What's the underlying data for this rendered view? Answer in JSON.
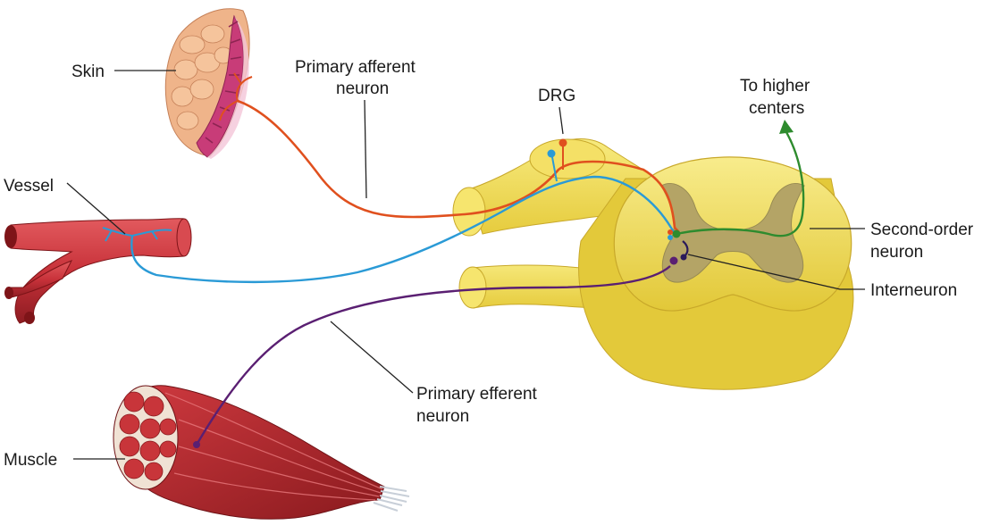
{
  "labels": {
    "skin": "Skin",
    "primary_afferent_line1": "Primary afferent",
    "primary_afferent_line2": "neuron",
    "drg": "DRG",
    "to_higher_line1": "To higher",
    "to_higher_line2": "centers",
    "vessel": "Vessel",
    "second_order_line1": "Second-order",
    "second_order_line2": "neuron",
    "interneuron": "Interneuron",
    "primary_efferent_line1": "Primary efferent",
    "primary_efferent_line2": "neuron",
    "muscle": "Muscle"
  },
  "colors": {
    "afferent": "#e0501e",
    "visceral_afferent": "#2a9ad6",
    "second_order": "#2e8b2e",
    "efferent": "#5a1f72",
    "interneuron": "#3a2a70",
    "cord": "#f4e26a",
    "gray_matter": "#b4a466",
    "vessel": "#c8323a",
    "muscle": "#b8282e",
    "skin": "#efb48a"
  }
}
